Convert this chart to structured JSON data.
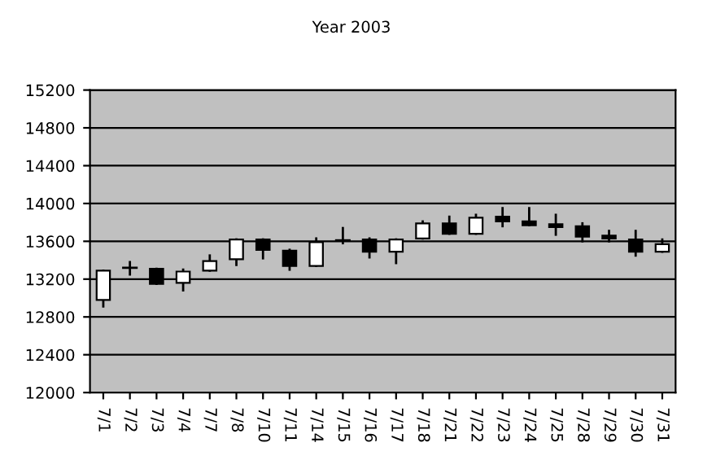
{
  "chart_data": {
    "type": "candlestick",
    "title": "Year 2003",
    "categories": [
      "7/1",
      "7/2",
      "7/3",
      "7/4",
      "7/7",
      "7/8",
      "7/10",
      "7/11",
      "7/14",
      "7/15",
      "7/16",
      "7/17",
      "7/18",
      "7/21",
      "7/22",
      "7/23",
      "7/24",
      "7/25",
      "7/28",
      "7/29",
      "7/30",
      "7/31"
    ],
    "ohlc": [
      [
        12980,
        13290,
        12910,
        13290
      ],
      [
        13320,
        13380,
        13250,
        13320
      ],
      [
        13310,
        13310,
        13150,
        13150
      ],
      [
        13160,
        13300,
        13080,
        13280
      ],
      [
        13290,
        13450,
        13290,
        13390
      ],
      [
        13410,
        13620,
        13350,
        13620
      ],
      [
        13620,
        13620,
        13420,
        13510
      ],
      [
        13500,
        13510,
        13300,
        13340
      ],
      [
        13340,
        13630,
        13340,
        13590
      ],
      [
        13610,
        13740,
        13580,
        13610
      ],
      [
        13620,
        13630,
        13430,
        13490
      ],
      [
        13490,
        13620,
        13370,
        13620
      ],
      [
        13630,
        13810,
        13630,
        13790
      ],
      [
        13790,
        13860,
        13680,
        13680
      ],
      [
        13680,
        13880,
        13680,
        13850
      ],
      [
        13860,
        13950,
        13760,
        13810
      ],
      [
        13810,
        13950,
        13770,
        13770
      ],
      [
        13780,
        13880,
        13670,
        13750
      ],
      [
        13760,
        13790,
        13600,
        13650
      ],
      [
        13660,
        13710,
        13600,
        13630
      ],
      [
        13620,
        13710,
        13450,
        13490
      ],
      [
        13490,
        13620,
        13490,
        13570
      ]
    ],
    "ylim": [
      12000,
      15200
    ],
    "yticks": [
      12000,
      12400,
      12800,
      13200,
      13600,
      14000,
      14400,
      14800,
      15200
    ],
    "grid": "y"
  }
}
